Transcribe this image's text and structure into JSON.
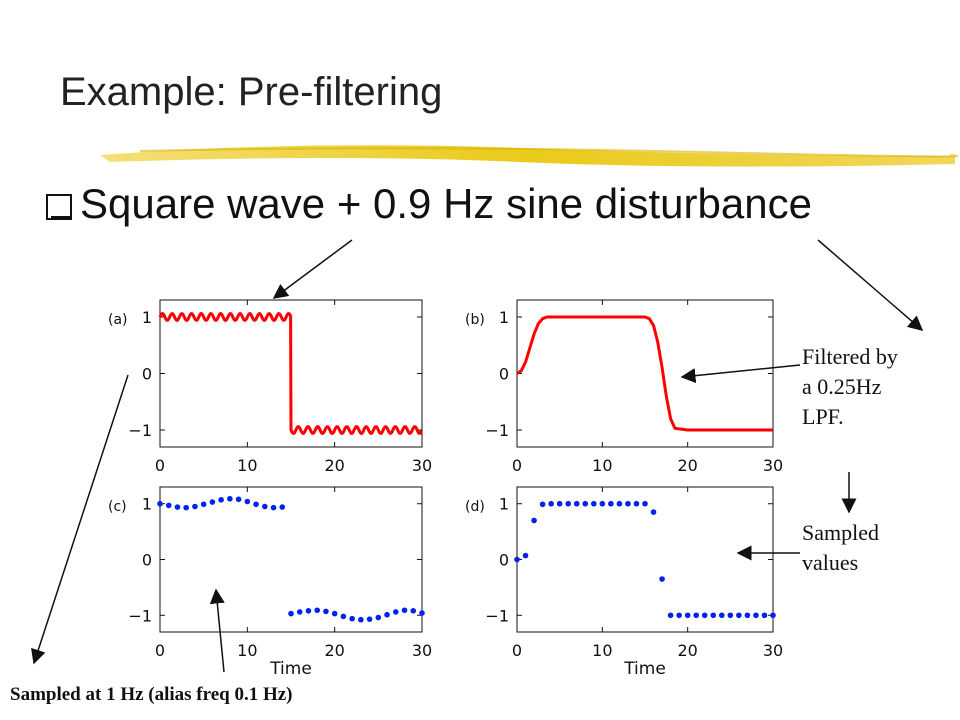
{
  "slide": {
    "title": "Example: Pre-filtering",
    "bullet": "Square wave + 0.9 Hz sine disturbance",
    "annotations": {
      "filtered": [
        "Filtered by",
        "a 0.25Hz",
        "LPF."
      ],
      "sampled": [
        "Sampled",
        "values"
      ],
      "bottom": "Sampled at 1 Hz (alias freq 0.1 Hz)"
    },
    "colors": {
      "accent_bar": "#e8c400",
      "line": "#ff0000",
      "dots": "#0022ee"
    }
  },
  "chart_data": [
    {
      "panel_label": "(a)",
      "type": "line",
      "series_color": "#ff0000",
      "description_values": {
        "square_wave_high": 1,
        "square_wave_low": -1,
        "switch_time": 15,
        "disturbance_freq_hz": 0.9,
        "disturbance_amplitude": 0.06
      },
      "xlim": [
        0,
        30
      ],
      "ylim": [
        -1.3,
        1.3
      ],
      "xticks": [
        "0",
        "10",
        "20",
        "30"
      ],
      "yticks": [
        "1",
        "0",
        "−1"
      ],
      "xlabel": ""
    },
    {
      "panel_label": "(b)",
      "type": "line",
      "series_color": "#ff0000",
      "x": [
        0,
        0.5,
        1,
        1.5,
        2,
        2.5,
        3,
        3.5,
        4,
        6,
        10,
        14,
        15,
        15.5,
        16,
        16.5,
        17,
        17.5,
        18,
        18.5,
        20,
        25,
        30
      ],
      "y": [
        0,
        0.05,
        0.2,
        0.45,
        0.7,
        0.88,
        0.97,
        1.0,
        1.0,
        1.0,
        1.0,
        1.0,
        1.0,
        0.97,
        0.85,
        0.55,
        0.1,
        -0.4,
        -0.8,
        -0.97,
        -1.0,
        -1.0,
        -1.0
      ],
      "xlim": [
        0,
        30
      ],
      "ylim": [
        -1.3,
        1.3
      ],
      "xticks": [
        "0",
        "10",
        "20",
        "30"
      ],
      "yticks": [
        "1",
        "0",
        "−1"
      ],
      "xlabel": ""
    },
    {
      "panel_label": "(c)",
      "type": "scatter",
      "series_color": "#0022ee",
      "x": [
        0,
        1,
        2,
        3,
        4,
        5,
        6,
        7,
        8,
        9,
        10,
        11,
        12,
        13,
        14,
        15,
        16,
        17,
        18,
        19,
        20,
        21,
        22,
        23,
        24,
        25,
        26,
        27,
        28,
        29,
        30
      ],
      "y": [
        1.0,
        0.97,
        0.94,
        0.93,
        0.95,
        0.99,
        1.03,
        1.07,
        1.09,
        1.08,
        1.04,
        0.99,
        0.95,
        0.93,
        0.94,
        -0.97,
        -0.94,
        -0.92,
        -0.91,
        -0.93,
        -0.97,
        -1.02,
        -1.06,
        -1.08,
        -1.07,
        -1.04,
        -0.99,
        -0.94,
        -0.91,
        -0.92,
        -0.96
      ],
      "xlim": [
        0,
        30
      ],
      "ylim": [
        -1.3,
        1.3
      ],
      "xticks": [
        "0",
        "10",
        "20",
        "30"
      ],
      "yticks": [
        "1",
        "0",
        "−1"
      ],
      "xlabel": "Time"
    },
    {
      "panel_label": "(d)",
      "type": "scatter",
      "series_color": "#0022ee",
      "x": [
        0,
        1,
        2,
        3,
        4,
        5,
        6,
        7,
        8,
        9,
        10,
        11,
        12,
        13,
        14,
        15,
        16,
        17,
        18,
        19,
        20,
        21,
        22,
        23,
        24,
        25,
        26,
        27,
        28,
        29,
        30
      ],
      "y": [
        0,
        0.07,
        0.7,
        0.99,
        1.0,
        1.0,
        1.0,
        1.0,
        1.0,
        1.0,
        1.0,
        1.0,
        1.0,
        1.0,
        1.0,
        1.0,
        0.85,
        -0.35,
        -1.0,
        -1.0,
        -1.0,
        -1.0,
        -1.0,
        -1.0,
        -1.0,
        -1.0,
        -1.0,
        -1.0,
        -1.0,
        -1.0,
        -1.0
      ],
      "xlim": [
        0,
        30
      ],
      "ylim": [
        -1.3,
        1.3
      ],
      "xticks": [
        "0",
        "10",
        "20",
        "30"
      ],
      "yticks": [
        "1",
        "0",
        "−1"
      ],
      "xlabel": "Time"
    }
  ]
}
